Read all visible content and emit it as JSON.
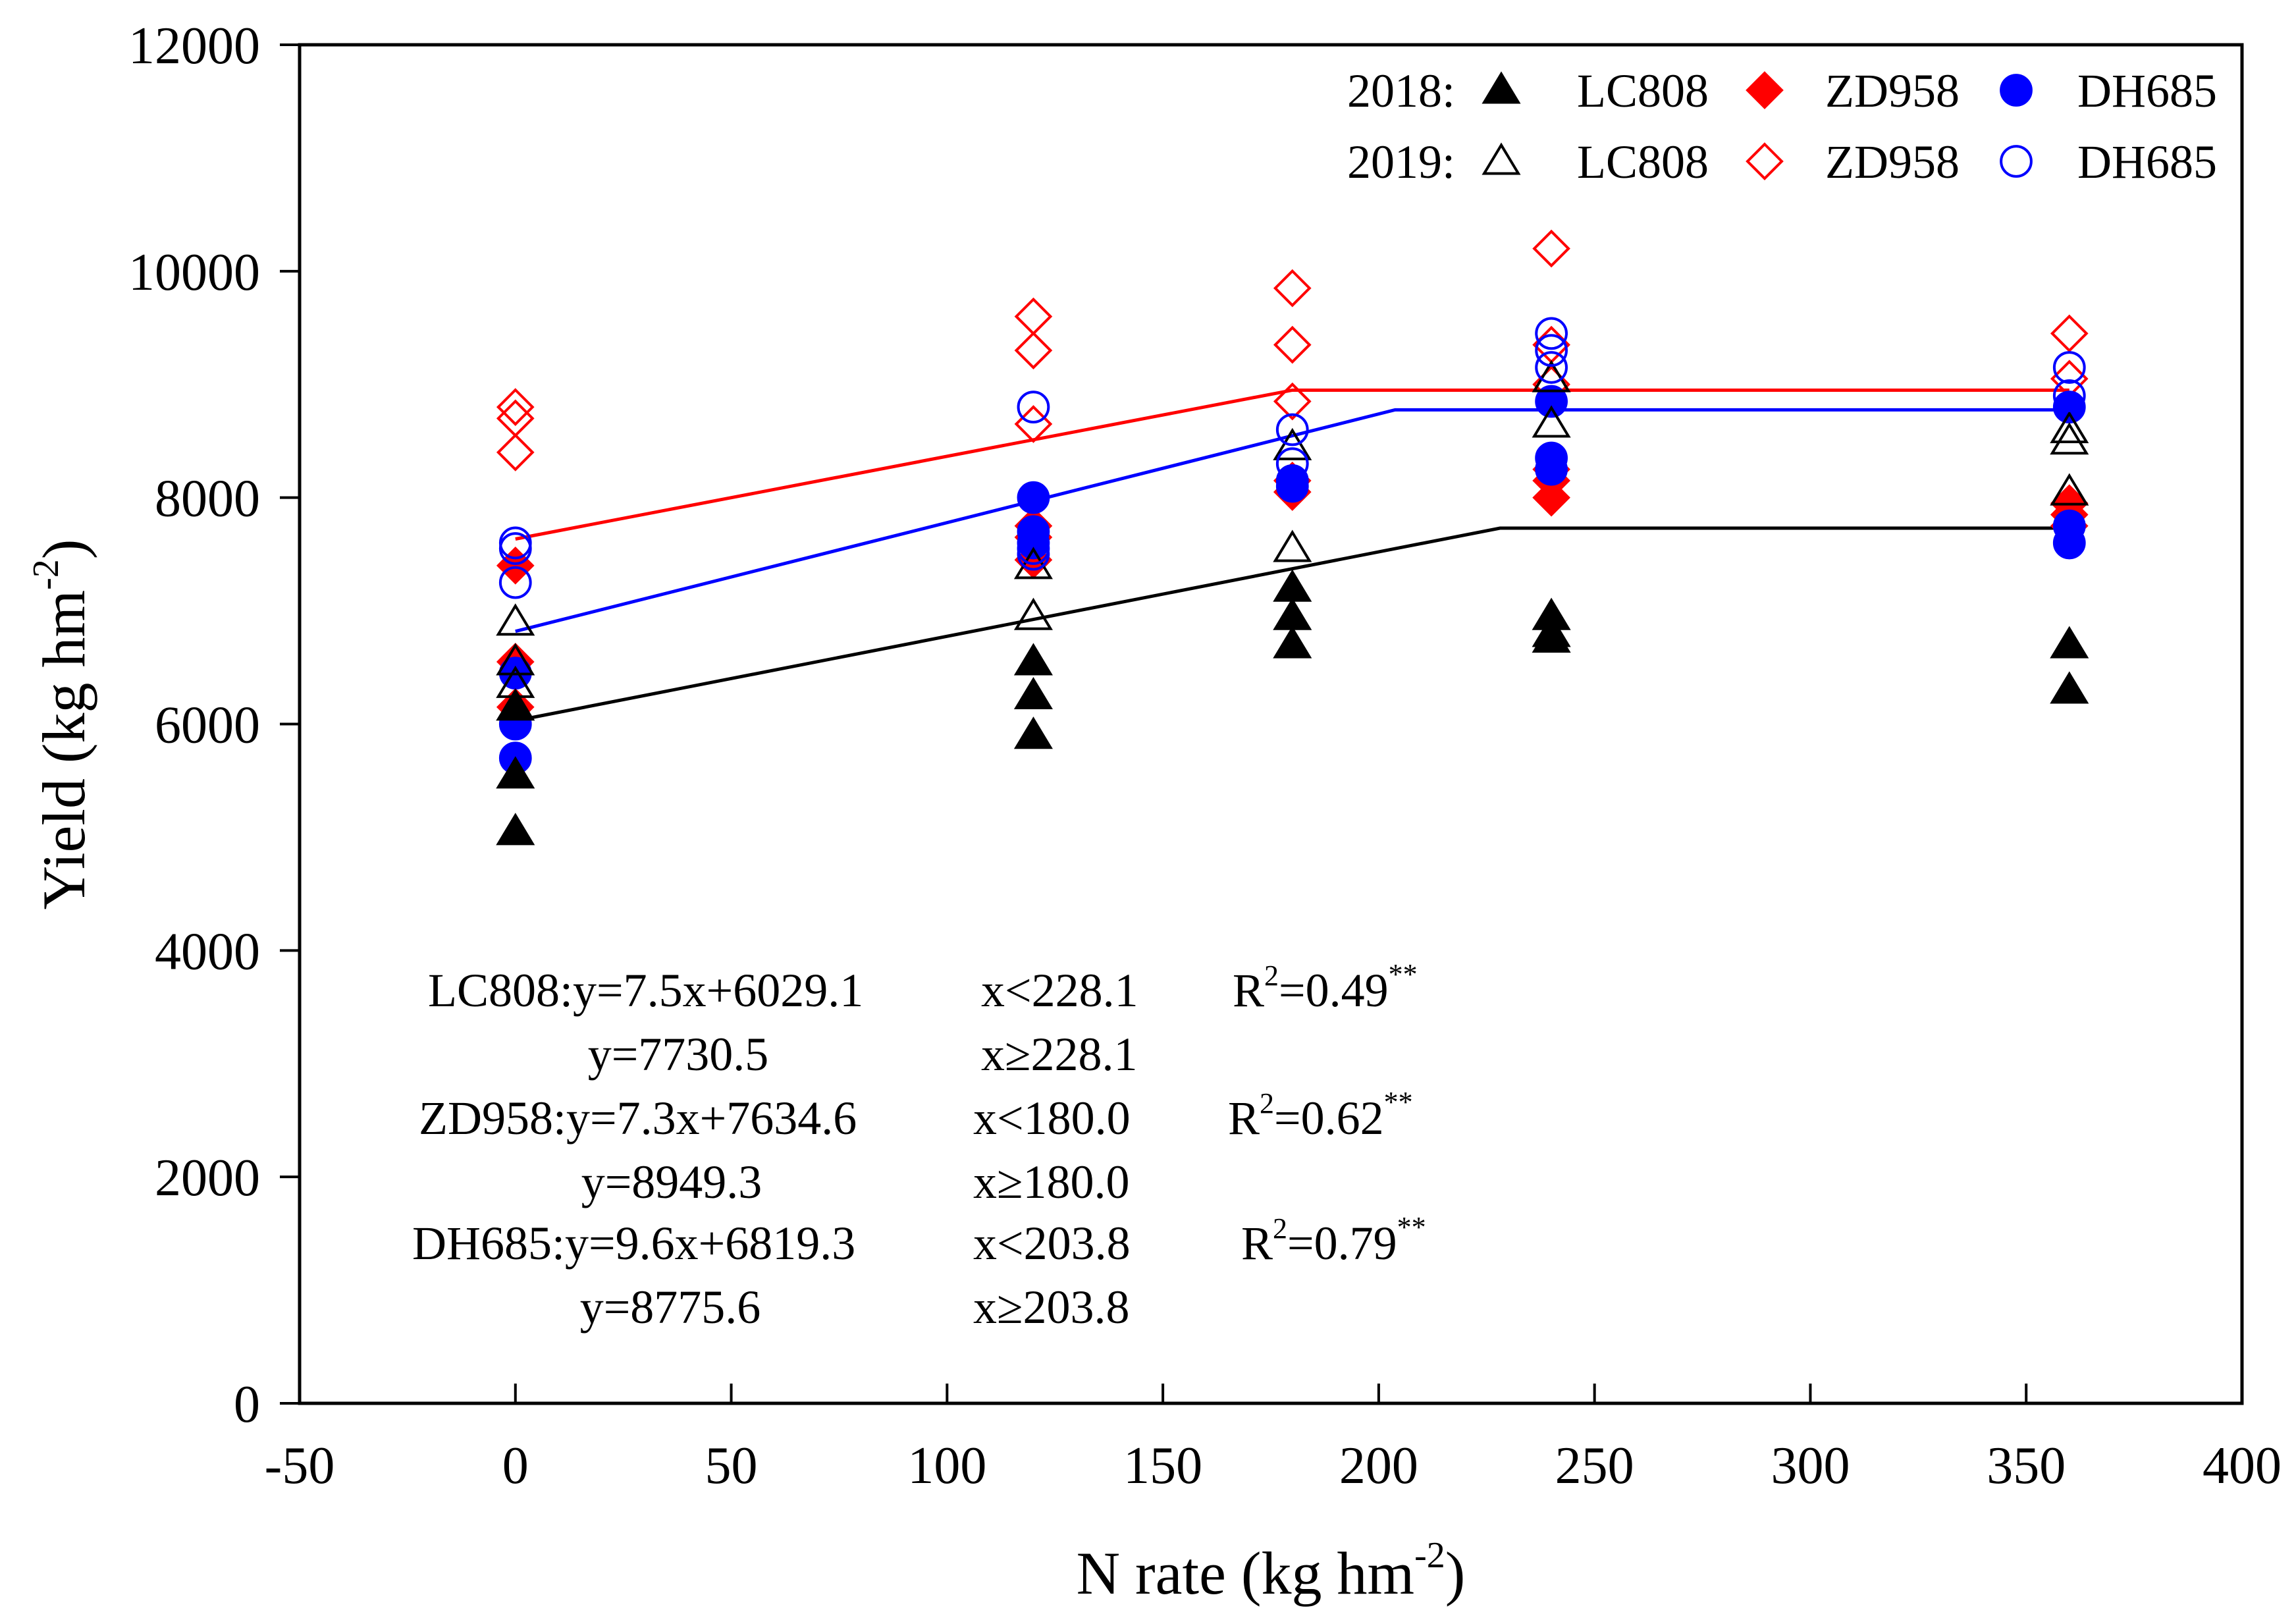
{
  "chart_data": {
    "type": "scatter",
    "xlabel": {
      "main": "N rate (kg hm",
      "sup": "-2",
      "close": ")"
    },
    "ylabel": {
      "main": "Yield (kg hm",
      "sup": "-2",
      "close": ")"
    },
    "xlim": [
      -50,
      400
    ],
    "ylim": [
      0,
      12000
    ],
    "xticks": [
      -50,
      0,
      50,
      100,
      150,
      200,
      250,
      300,
      350,
      400
    ],
    "xtick_labels": [
      "-50",
      "0",
      "50",
      "100",
      "150",
      "200",
      "250",
      "300",
      "350",
      "400"
    ],
    "yticks": [
      0,
      2000,
      4000,
      6000,
      8000,
      10000,
      12000
    ],
    "ytick_labels": [
      "0",
      "2000",
      "4000",
      "6000",
      "8000",
      "10000",
      "12000"
    ],
    "colors": {
      "LC808": "#000000",
      "ZD958": "#ff0000",
      "DH685": "#0000ff"
    },
    "legend": {
      "position": "top-right",
      "rows": [
        {
          "year": "2018:",
          "items": [
            {
              "label": "LC808",
              "marker": "triangle",
              "filled": true,
              "color": "#000000"
            },
            {
              "label": "ZD958",
              "marker": "diamond",
              "filled": true,
              "color": "#ff0000"
            },
            {
              "label": "DH685",
              "marker": "circle",
              "filled": true,
              "color": "#0000ff"
            }
          ]
        },
        {
          "year": "2019:",
          "items": [
            {
              "label": "LC808",
              "marker": "triangle",
              "filled": false,
              "color": "#000000"
            },
            {
              "label": "ZD958",
              "marker": "diamond",
              "filled": false,
              "color": "#ff0000"
            },
            {
              "label": "DH685",
              "marker": "circle",
              "filled": false,
              "color": "#0000ff"
            }
          ]
        }
      ]
    },
    "series": [
      {
        "name": "ZD958 2019",
        "marker": "diamond",
        "filled": false,
        "color": "#ff0000",
        "points": [
          [
            0,
            8800
          ],
          [
            0,
            8700
          ],
          [
            0,
            8400
          ],
          [
            120,
            9600
          ],
          [
            120,
            9300
          ],
          [
            120,
            8650
          ],
          [
            180,
            9850
          ],
          [
            180,
            9350
          ],
          [
            180,
            8850
          ],
          [
            240,
            10200
          ],
          [
            240,
            9350
          ],
          [
            240,
            9000
          ],
          [
            360,
            9450
          ],
          [
            360,
            9050
          ]
        ]
      },
      {
        "name": "ZD958 2018",
        "marker": "diamond",
        "filled": true,
        "color": "#ff0000",
        "points": [
          [
            0,
            7400
          ],
          [
            0,
            6550
          ],
          [
            0,
            6150
          ],
          [
            120,
            7750
          ],
          [
            120,
            7650
          ],
          [
            120,
            7450
          ],
          [
            180,
            8050
          ],
          [
            180,
            8150
          ],
          [
            240,
            8000
          ],
          [
            240,
            8150
          ],
          [
            240,
            8250
          ],
          [
            360,
            7950
          ],
          [
            360,
            7850
          ],
          [
            360,
            7750
          ]
        ]
      },
      {
        "name": "DH685 2018",
        "marker": "circle",
        "filled": true,
        "color": "#0000ff",
        "points": [
          [
            0,
            6450
          ],
          [
            0,
            6000
          ],
          [
            0,
            5700
          ],
          [
            120,
            8000
          ],
          [
            120,
            7700
          ],
          [
            120,
            7600
          ],
          [
            180,
            8100
          ],
          [
            180,
            8150
          ],
          [
            240,
            8350
          ],
          [
            240,
            8250
          ],
          [
            240,
            8850
          ],
          [
            360,
            8800
          ],
          [
            360,
            7750
          ],
          [
            360,
            7600
          ]
        ]
      },
      {
        "name": "LC808 2018",
        "marker": "triangle",
        "filled": true,
        "color": "#000000",
        "points": [
          [
            0,
            5550
          ],
          [
            0,
            5050
          ],
          [
            0,
            6150
          ],
          [
            120,
            6550
          ],
          [
            120,
            6250
          ],
          [
            120,
            5900
          ],
          [
            180,
            7200
          ],
          [
            180,
            6950
          ],
          [
            180,
            6700
          ],
          [
            240,
            6950
          ],
          [
            240,
            6800
          ],
          [
            240,
            6750
          ],
          [
            360,
            6700
          ],
          [
            360,
            6300
          ]
        ]
      },
      {
        "name": "LC808 2019",
        "marker": "triangle",
        "filled": false,
        "color": "#000000",
        "points": [
          [
            0,
            6900
          ],
          [
            0,
            6550
          ],
          [
            0,
            6350
          ],
          [
            120,
            7400
          ],
          [
            120,
            6950
          ],
          [
            180,
            7550
          ],
          [
            180,
            8450
          ],
          [
            240,
            9050
          ],
          [
            240,
            8650
          ],
          [
            360,
            8600
          ],
          [
            360,
            8500
          ],
          [
            360,
            8050
          ]
        ]
      },
      {
        "name": "DH685 2019",
        "marker": "circle",
        "filled": false,
        "color": "#0000ff",
        "points": [
          [
            0,
            7600
          ],
          [
            0,
            7550
          ],
          [
            0,
            7250
          ],
          [
            120,
            8800
          ],
          [
            120,
            7550
          ],
          [
            120,
            7500
          ],
          [
            180,
            8600
          ],
          [
            180,
            8300
          ],
          [
            240,
            9450
          ],
          [
            240,
            9300
          ],
          [
            240,
            9150
          ],
          [
            360,
            9150
          ],
          [
            360,
            8900
          ]
        ]
      }
    ],
    "fits": [
      {
        "name": "LC808",
        "color": "#000000",
        "slope": 7.5,
        "intercept": 6029.1,
        "break": 228.1,
        "plateau": 7730.5,
        "x_range": [
          0,
          360
        ]
      },
      {
        "name": "ZD958",
        "color": "#ff0000",
        "slope": 7.3,
        "intercept": 7634.6,
        "break": 180.0,
        "plateau": 8949.3,
        "x_range": [
          0,
          360
        ]
      },
      {
        "name": "DH685",
        "color": "#0000ff",
        "slope": 9.6,
        "intercept": 6819.3,
        "break": 203.8,
        "plateau": 8775.6,
        "x_range": [
          0,
          360
        ]
      }
    ],
    "annotations": [
      {
        "name": "LC808:",
        "eq1": "y=7.5x+6029.1",
        "cond1": "x<228.1",
        "eq2": "y=7730.5",
        "cond2": "x≥228.1",
        "r2_label": "R",
        "r2_sup": "2",
        "r2_value": "=0.49",
        "signif": "**"
      },
      {
        "name": "ZD958:",
        "eq1": "y=7.3x+7634.6",
        "cond1": "x<180.0",
        "eq2": "y=8949.3",
        "cond2": "x≥180.0",
        "r2_label": "R",
        "r2_sup": "2",
        "r2_value": "=0.62",
        "signif": "**"
      },
      {
        "name": "DH685:",
        "eq1": "y=9.6x+6819.3",
        "cond1": "x<203.8",
        "eq2": "y=8775.6",
        "cond2": "x≥203.8",
        "r2_label": "R",
        "r2_sup": "2",
        "r2_value": "=0.79",
        "signif": "**"
      }
    ]
  }
}
